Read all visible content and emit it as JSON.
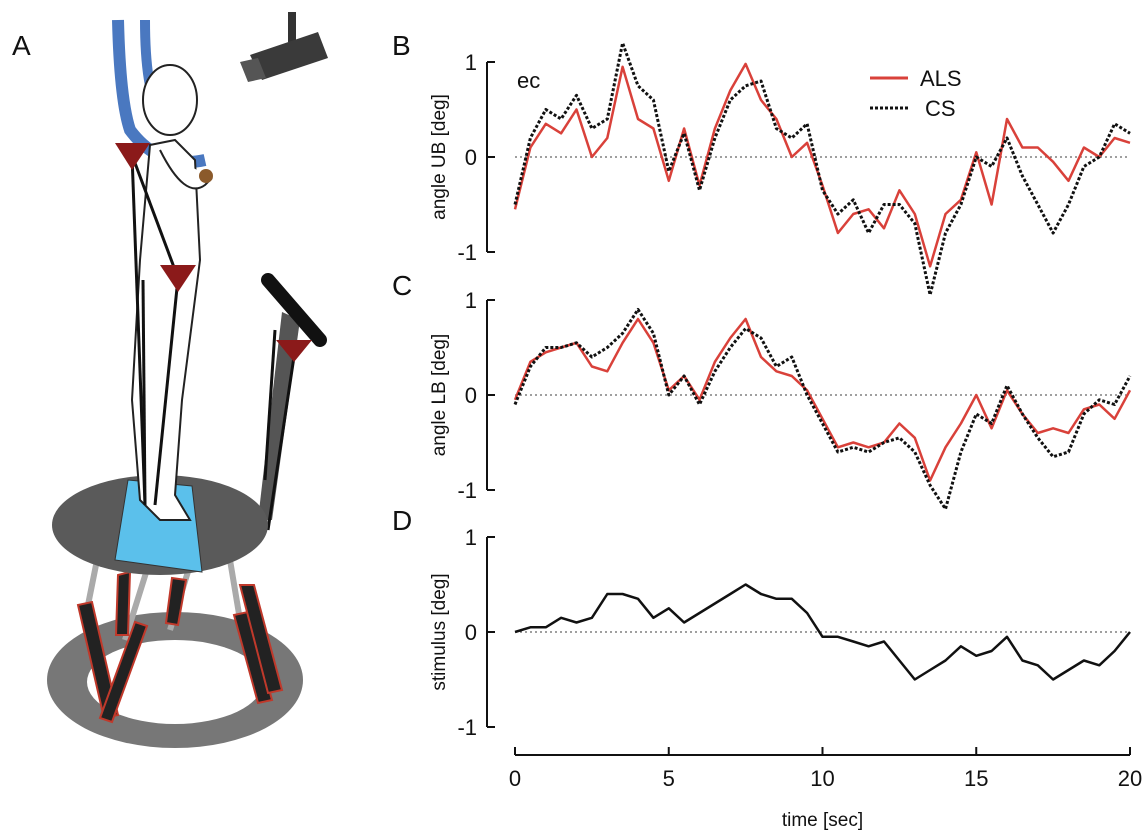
{
  "illustration": {
    "label": "A"
  },
  "chart_data": [
    {
      "type": "line",
      "panel": "B",
      "ylabel": "angle UB [deg]",
      "annotation": "ec",
      "xlim": [
        0,
        20
      ],
      "ylim": [
        -1,
        1
      ],
      "yticks": [
        -1,
        0,
        1
      ],
      "zero_line": true,
      "legend": "upper right",
      "x": [
        0,
        0.5,
        1,
        1.5,
        2,
        2.5,
        3,
        3.5,
        4,
        4.5,
        5,
        5.5,
        6,
        6.5,
        7,
        7.5,
        8,
        8.5,
        9,
        9.5,
        10,
        10.5,
        11,
        11.5,
        12,
        12.5,
        13,
        13.5,
        14,
        14.5,
        15,
        15.5,
        16,
        16.5,
        17,
        17.5,
        18,
        18.5,
        19,
        19.5,
        20
      ],
      "series": [
        {
          "name": "ALS",
          "color": "#d9413a",
          "linestyle": "solid",
          "values": [
            -0.55,
            0.1,
            0.35,
            0.25,
            0.5,
            0.0,
            0.2,
            0.95,
            0.4,
            0.3,
            -0.25,
            0.3,
            -0.3,
            0.3,
            0.7,
            0.98,
            0.6,
            0.4,
            0.0,
            0.15,
            -0.3,
            -0.8,
            -0.6,
            -0.55,
            -0.75,
            -0.35,
            -0.6,
            -1.15,
            -0.6,
            -0.45,
            0.05,
            -0.5,
            0.4,
            0.1,
            0.1,
            -0.05,
            -0.25,
            0.1,
            0.0,
            0.2,
            0.15
          ]
        },
        {
          "name": "CS",
          "color": "#111111",
          "linestyle": "dotted",
          "values": [
            -0.5,
            0.2,
            0.5,
            0.4,
            0.65,
            0.3,
            0.4,
            1.2,
            0.75,
            0.6,
            -0.15,
            0.25,
            -0.35,
            0.2,
            0.6,
            0.75,
            0.8,
            0.3,
            0.2,
            0.35,
            -0.35,
            -0.6,
            -0.45,
            -0.8,
            -0.5,
            -0.5,
            -0.7,
            -1.45,
            -0.8,
            -0.5,
            0.0,
            -0.1,
            0.2,
            -0.2,
            -0.5,
            -0.8,
            -0.5,
            -0.1,
            0.0,
            0.35,
            0.25
          ]
        }
      ]
    },
    {
      "type": "line",
      "panel": "C",
      "ylabel": "angle LB [deg]",
      "xlim": [
        0,
        20
      ],
      "ylim": [
        -1,
        1
      ],
      "yticks": [
        -1,
        0,
        1
      ],
      "zero_line": true,
      "x": [
        0,
        0.5,
        1,
        1.5,
        2,
        2.5,
        3,
        3.5,
        4,
        4.5,
        5,
        5.5,
        6,
        6.5,
        7,
        7.5,
        8,
        8.5,
        9,
        9.5,
        10,
        10.5,
        11,
        11.5,
        12,
        12.5,
        13,
        13.5,
        14,
        14.5,
        15,
        15.5,
        16,
        16.5,
        17,
        17.5,
        18,
        18.5,
        19,
        19.5,
        20
      ],
      "series": [
        {
          "color": "#d9413a",
          "linestyle": "solid",
          "values": [
            -0.05,
            0.35,
            0.45,
            0.5,
            0.55,
            0.3,
            0.25,
            0.55,
            0.8,
            0.55,
            0.05,
            0.2,
            -0.05,
            0.35,
            0.6,
            0.8,
            0.4,
            0.25,
            0.2,
            0.05,
            -0.25,
            -0.55,
            -0.5,
            -0.55,
            -0.5,
            -0.3,
            -0.45,
            -0.9,
            -0.55,
            -0.3,
            0.0,
            -0.35,
            0.05,
            -0.2,
            -0.4,
            -0.35,
            -0.4,
            -0.15,
            -0.1,
            -0.25,
            0.05
          ]
        },
        {
          "color": "#111111",
          "linestyle": "dotted",
          "values": [
            -0.1,
            0.3,
            0.5,
            0.5,
            0.55,
            0.4,
            0.5,
            0.65,
            0.9,
            0.65,
            0.0,
            0.2,
            -0.1,
            0.25,
            0.5,
            0.7,
            0.6,
            0.3,
            0.4,
            0.0,
            -0.3,
            -0.6,
            -0.55,
            -0.6,
            -0.5,
            -0.45,
            -0.6,
            -0.95,
            -1.2,
            -0.6,
            -0.2,
            -0.3,
            0.1,
            -0.2,
            -0.45,
            -0.65,
            -0.6,
            -0.2,
            -0.05,
            -0.1,
            0.2
          ]
        }
      ]
    },
    {
      "type": "line",
      "panel": "D",
      "ylabel": "stimulus [deg]",
      "xlabel": "time [sec]",
      "xlim": [
        0,
        20
      ],
      "xticks": [
        0,
        5,
        10,
        15,
        20
      ],
      "ylim": [
        -1,
        1
      ],
      "yticks": [
        -1,
        0,
        1
      ],
      "zero_line": true,
      "x": [
        0,
        0.5,
        1,
        1.5,
        2,
        2.5,
        3,
        3.5,
        4,
        4.5,
        5,
        5.5,
        6,
        6.5,
        7,
        7.5,
        8,
        8.5,
        9,
        9.5,
        10,
        10.5,
        11,
        11.5,
        12,
        12.5,
        13,
        13.5,
        14,
        14.5,
        15,
        15.5,
        16,
        16.5,
        17,
        17.5,
        18,
        18.5,
        19,
        19.5,
        20
      ],
      "series": [
        {
          "color": "#111111",
          "linestyle": "solid",
          "values": [
            0.0,
            0.05,
            0.05,
            0.15,
            0.1,
            0.15,
            0.4,
            0.4,
            0.35,
            0.15,
            0.25,
            0.1,
            0.2,
            0.3,
            0.4,
            0.5,
            0.4,
            0.35,
            0.35,
            0.2,
            -0.05,
            -0.05,
            -0.1,
            -0.15,
            -0.1,
            -0.3,
            -0.5,
            -0.4,
            -0.3,
            -0.15,
            -0.25,
            -0.2,
            -0.05,
            -0.3,
            -0.35,
            -0.5,
            -0.4,
            -0.3,
            -0.35,
            -0.2,
            0.0
          ]
        }
      ]
    }
  ]
}
